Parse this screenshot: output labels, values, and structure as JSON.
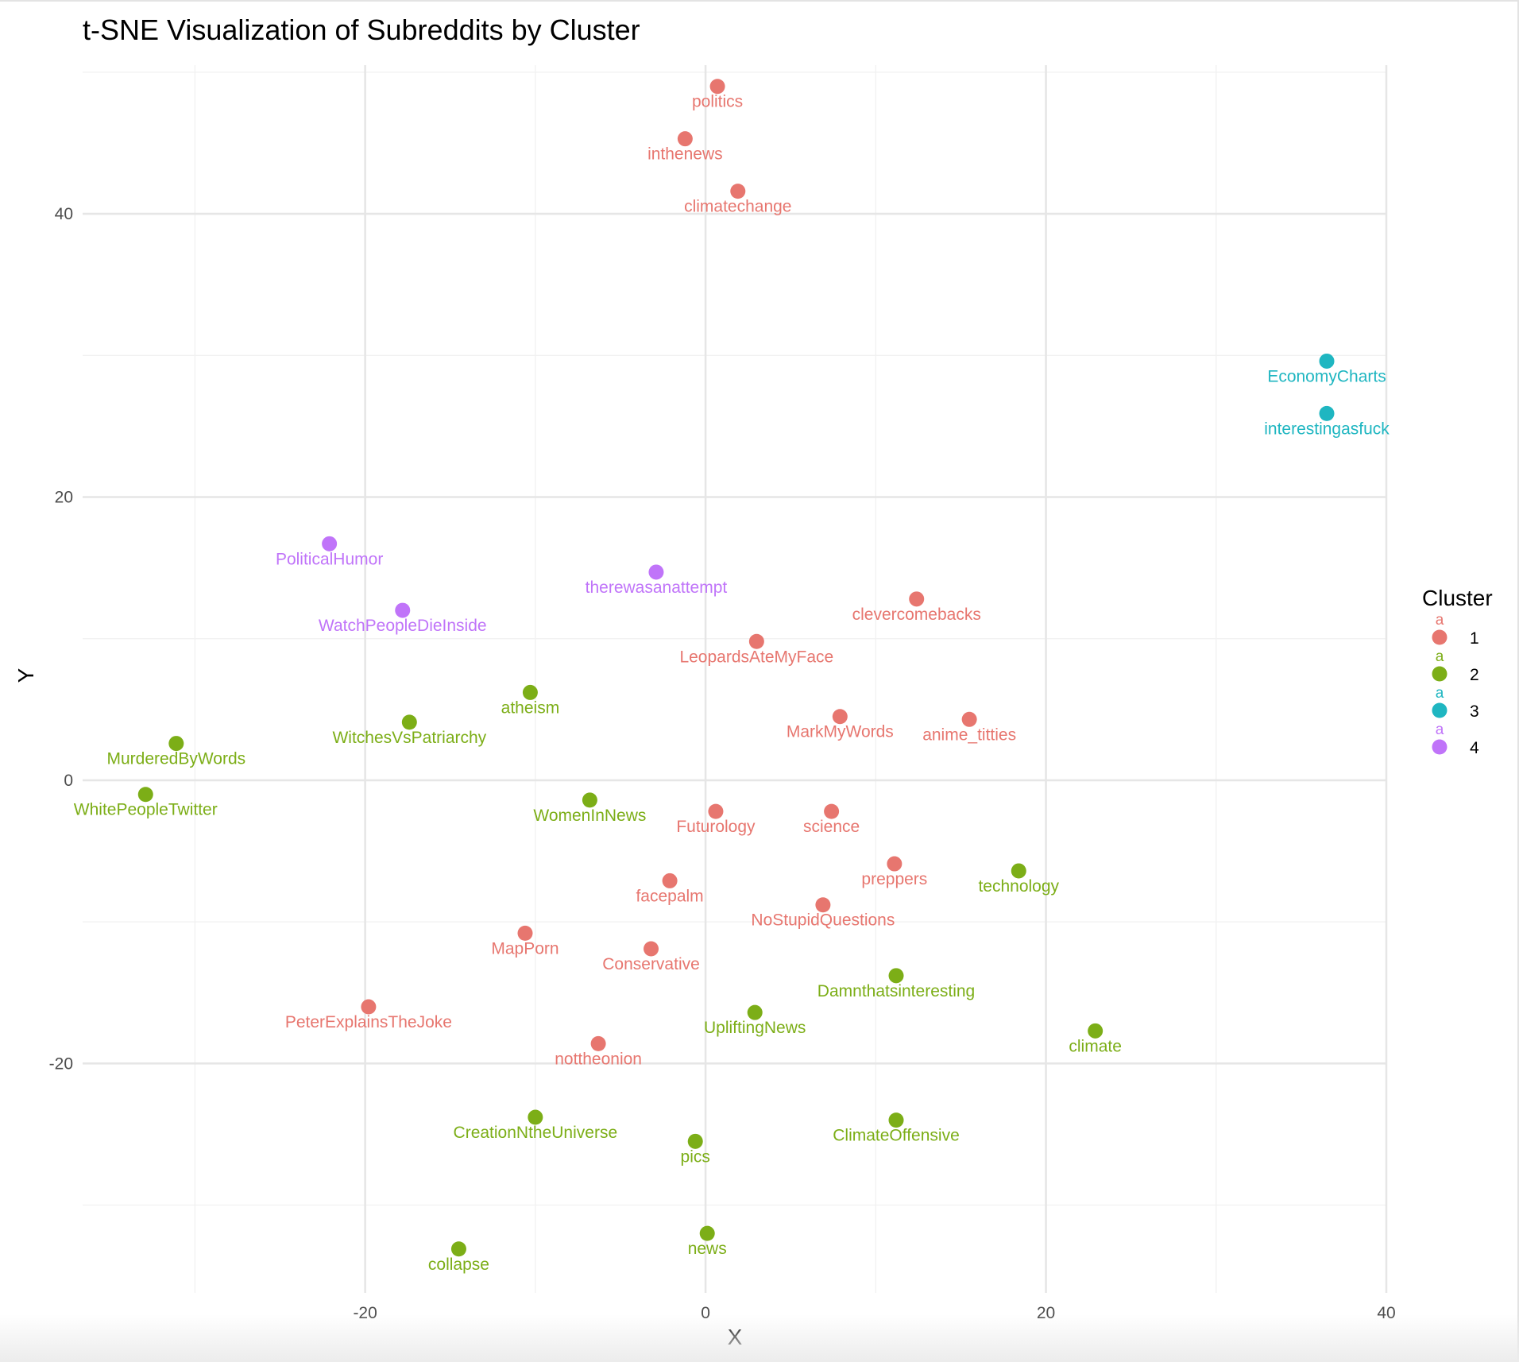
{
  "chart_data": {
    "type": "scatter",
    "title": "t-SNE Visualization of Subreddits by Cluster",
    "xlabel": "X",
    "ylabel": "Y",
    "xlim": [
      -36.6,
      40
    ],
    "ylim": [
      -36.2,
      50.5
    ],
    "x_ticks": [
      -20,
      0,
      20,
      40
    ],
    "y_ticks": [
      -20,
      0,
      20,
      40
    ],
    "x_tick_labels": [
      "-20",
      "0",
      "20",
      "40"
    ],
    "y_tick_labels": [
      "-20",
      "0",
      "20",
      "40"
    ],
    "grid": true,
    "legend": {
      "title": "Cluster",
      "position": "right",
      "key_text": "a",
      "entries": [
        {
          "label": "1",
          "color": "#E7766F"
        },
        {
          "label": "2",
          "color": "#7CAE17"
        },
        {
          "label": "3",
          "color": "#1FB6C1"
        },
        {
          "label": "4",
          "color": "#C074F9"
        }
      ]
    },
    "points": [
      {
        "label": "politics",
        "x": 0.7,
        "y": 49.0,
        "cluster": 1
      },
      {
        "label": "inthenews",
        "x": -1.2,
        "y": 45.3,
        "cluster": 1
      },
      {
        "label": "climatechange",
        "x": 1.9,
        "y": 41.6,
        "cluster": 1
      },
      {
        "label": "EconomyCharts",
        "x": 36.5,
        "y": 29.6,
        "cluster": 3
      },
      {
        "label": "interestingasfuck",
        "x": 36.5,
        "y": 25.9,
        "cluster": 3
      },
      {
        "label": "PoliticalHumor",
        "x": -22.1,
        "y": 16.7,
        "cluster": 4
      },
      {
        "label": "therewasanattempt",
        "x": -2.9,
        "y": 14.7,
        "cluster": 4
      },
      {
        "label": "WatchPeopleDieInside",
        "x": -17.8,
        "y": 12.0,
        "cluster": 4
      },
      {
        "label": "clevercomebacks",
        "x": 12.4,
        "y": 12.8,
        "cluster": 1
      },
      {
        "label": "LeopardsAteMyFace",
        "x": 3.0,
        "y": 9.8,
        "cluster": 1
      },
      {
        "label": "atheism",
        "x": -10.3,
        "y": 6.2,
        "cluster": 2
      },
      {
        "label": "WitchesVsPatriarchy",
        "x": -17.4,
        "y": 4.1,
        "cluster": 2
      },
      {
        "label": "MarkMyWords",
        "x": 7.9,
        "y": 4.5,
        "cluster": 1
      },
      {
        "label": "anime_titties",
        "x": 15.5,
        "y": 4.3,
        "cluster": 1
      },
      {
        "label": "MurderedByWords",
        "x": -31.1,
        "y": 2.6,
        "cluster": 2
      },
      {
        "label": "WhitePeopleTwitter",
        "x": -32.9,
        "y": -1.0,
        "cluster": 2
      },
      {
        "label": "WomenInNews",
        "x": -6.8,
        "y": -1.4,
        "cluster": 2
      },
      {
        "label": "Futurology",
        "x": 0.6,
        "y": -2.2,
        "cluster": 1
      },
      {
        "label": "science",
        "x": 7.4,
        "y": -2.2,
        "cluster": 1
      },
      {
        "label": "preppers",
        "x": 11.1,
        "y": -5.9,
        "cluster": 1
      },
      {
        "label": "technology",
        "x": 18.4,
        "y": -6.4,
        "cluster": 2
      },
      {
        "label": "facepalm",
        "x": -2.1,
        "y": -7.1,
        "cluster": 1
      },
      {
        "label": "NoStupidQuestions",
        "x": 6.9,
        "y": -8.8,
        "cluster": 1
      },
      {
        "label": "MapPorn",
        "x": -10.6,
        "y": -10.8,
        "cluster": 1
      },
      {
        "label": "Conservative",
        "x": -3.2,
        "y": -11.9,
        "cluster": 1
      },
      {
        "label": "Damnthatsinteresting",
        "x": 11.2,
        "y": -13.8,
        "cluster": 2
      },
      {
        "label": "PeterExplainsTheJoke",
        "x": -19.8,
        "y": -16.0,
        "cluster": 1
      },
      {
        "label": "UpliftingNews",
        "x": 2.9,
        "y": -16.4,
        "cluster": 2
      },
      {
        "label": "climate",
        "x": 22.9,
        "y": -17.7,
        "cluster": 2
      },
      {
        "label": "nottheonion",
        "x": -6.3,
        "y": -18.6,
        "cluster": 1
      },
      {
        "label": "CreationNtheUniverse",
        "x": -10.0,
        "y": -23.8,
        "cluster": 2
      },
      {
        "label": "ClimateOffensive",
        "x": 11.2,
        "y": -24.0,
        "cluster": 2
      },
      {
        "label": "pics",
        "x": -0.6,
        "y": -25.5,
        "cluster": 2
      },
      {
        "label": "news",
        "x": 0.1,
        "y": -32.0,
        "cluster": 2
      },
      {
        "label": "collapse",
        "x": -14.5,
        "y": -33.1,
        "cluster": 2
      }
    ]
  }
}
